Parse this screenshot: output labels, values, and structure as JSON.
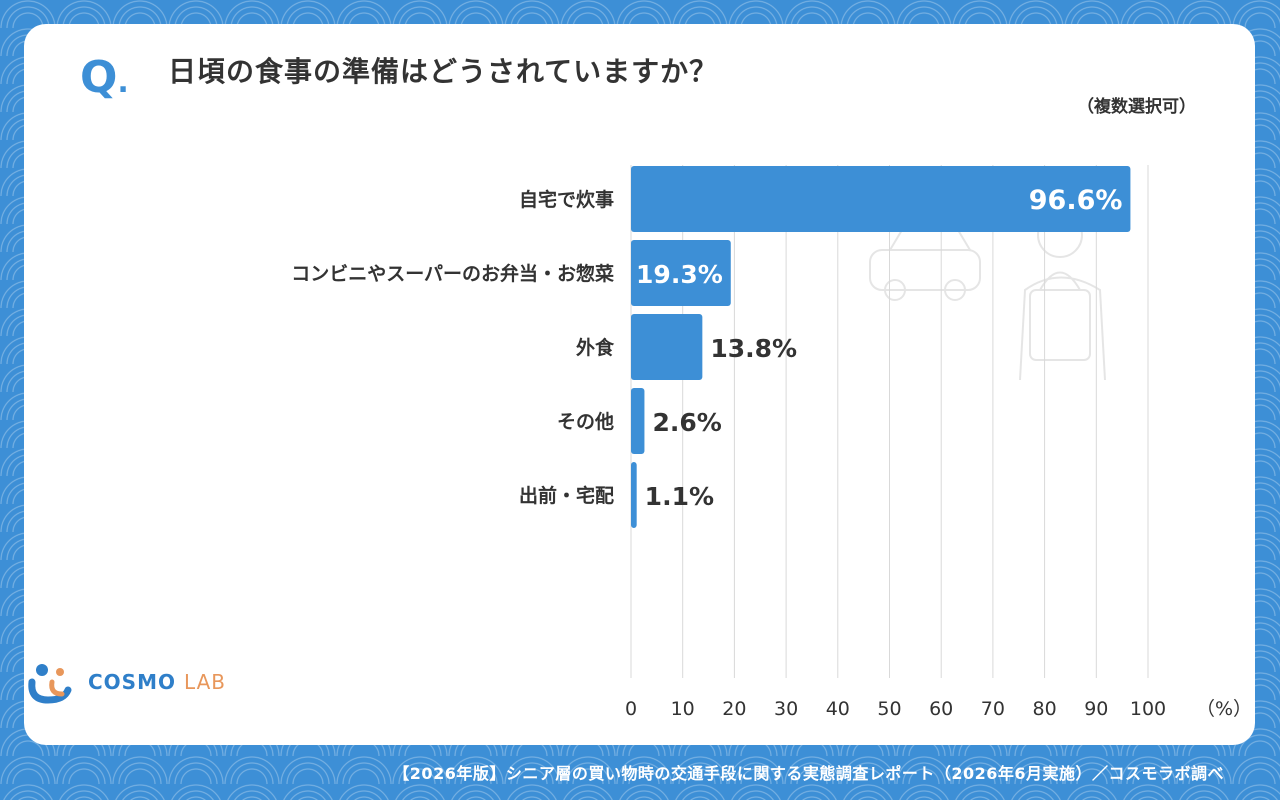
{
  "question": {
    "mark": "Q",
    "mark_dot": ".",
    "title": "日頃の食事の準備はどうされていますか？",
    "note": "（複数選択可）"
  },
  "chart_data": {
    "type": "bar",
    "orientation": "horizontal",
    "categories": [
      "自宅で炊事",
      "コンビニやスーパーのお弁当・お惣菜",
      "外食",
      "その他",
      "出前・宅配"
    ],
    "values": [
      96.6,
      19.3,
      13.8,
      2.6,
      1.1
    ],
    "value_labels": [
      "96.6%",
      "19.3%",
      "13.8%",
      "2.6%",
      "1.1%"
    ],
    "xticks": [
      0,
      10,
      20,
      30,
      40,
      50,
      60,
      70,
      80,
      90,
      100
    ],
    "xlim": [
      0,
      100
    ],
    "unit_label": "（%）",
    "grid": true,
    "bar_color": "#3d8fd6"
  },
  "logo": {
    "name": "COSMO",
    "suffix": "LAB"
  },
  "footer": "【2026年版】シニア層の買い物時の交通手段に関する実態調査レポート（2026年6月実施）／コスモラボ調べ",
  "colors": {
    "accent": "#3d8fd6",
    "text": "#333333",
    "logo_orange": "#e8975b"
  }
}
